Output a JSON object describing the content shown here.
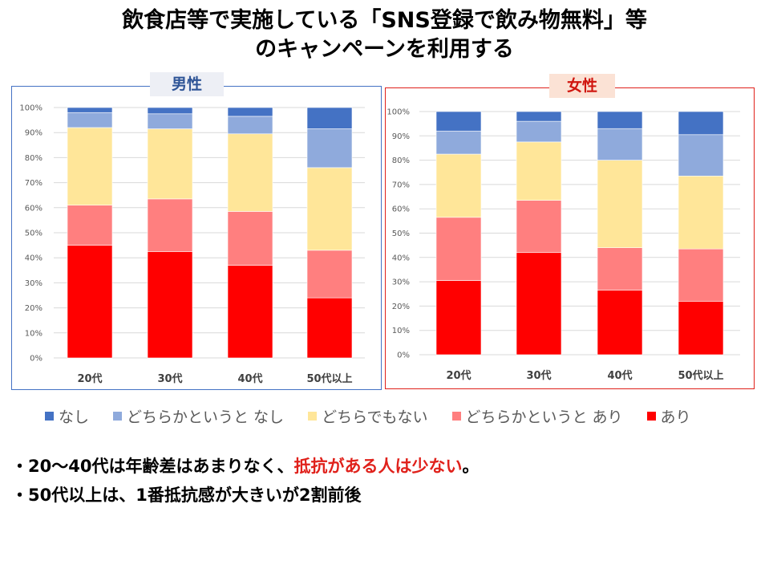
{
  "title": {
    "line1": "飲食店等で実施している「SNS登録で飲み物無料」等",
    "line2": "のキャンペーンを利用する"
  },
  "panels": {
    "male_label": "男性",
    "female_label": "女性"
  },
  "legend": [
    {
      "label": "なし",
      "color": "#4472C4"
    },
    {
      "label": "どちらかというと なし",
      "color": "#8FAADC"
    },
    {
      "label": "どちらでもない",
      "color": "#FFE699"
    },
    {
      "label": "どちらかというと あり",
      "color": "#FF7F7F"
    },
    {
      "label": "あり",
      "color": "#FF0000"
    }
  ],
  "notes": {
    "line1_prefix": "・20～40代は年齢差はあまりなく、",
    "line1_highlight": "抵抗がある人は少ない",
    "line1_suffix": "。",
    "line2": "・50代以上は、1番抵抗感が大きいが2割前後"
  },
  "chart_data": [
    {
      "type": "bar",
      "stacked": true,
      "title": "男性",
      "categories": [
        "20代",
        "30代",
        "40代",
        "50代以上"
      ],
      "ylim": [
        0,
        100
      ],
      "yticks": [
        "0%",
        "10%",
        "20%",
        "30%",
        "40%",
        "50%",
        "60%",
        "70%",
        "80%",
        "90%",
        "100%"
      ],
      "grid": true,
      "series": [
        {
          "name": "あり",
          "color": "#FF0000",
          "values": [
            45,
            42.5,
            37,
            24
          ]
        },
        {
          "name": "どちらかというと あり",
          "color": "#FF7F7F",
          "values": [
            16,
            21,
            21.5,
            19
          ]
        },
        {
          "name": "どちらでもない",
          "color": "#FFE699",
          "values": [
            31,
            28,
            31,
            33
          ]
        },
        {
          "name": "どちらかというと なし",
          "color": "#8FAADC",
          "values": [
            6,
            6,
            7,
            15.5
          ]
        },
        {
          "name": "なし",
          "color": "#4472C4",
          "values": [
            2,
            2.5,
            3.5,
            8.5
          ]
        }
      ]
    },
    {
      "type": "bar",
      "stacked": true,
      "title": "女性",
      "categories": [
        "20代",
        "30代",
        "40代",
        "50代以上"
      ],
      "ylim": [
        0,
        100
      ],
      "yticks": [
        "0%",
        "10%",
        "20%",
        "30%",
        "40%",
        "50%",
        "60%",
        "70%",
        "80%",
        "90%",
        "100%"
      ],
      "grid": true,
      "series": [
        {
          "name": "あり",
          "color": "#FF0000",
          "values": [
            30.5,
            42,
            26.5,
            22
          ]
        },
        {
          "name": "どちらかというと あり",
          "color": "#FF7F7F",
          "values": [
            26,
            21.5,
            17.5,
            21.5
          ]
        },
        {
          "name": "どちらでもない",
          "color": "#FFE699",
          "values": [
            26,
            24,
            36,
            30
          ]
        },
        {
          "name": "どちらかというと なし",
          "color": "#8FAADC",
          "values": [
            9.5,
            8.5,
            13,
            17
          ]
        },
        {
          "name": "なし",
          "color": "#4472C4",
          "values": [
            8,
            4,
            7,
            9.5
          ]
        }
      ]
    }
  ]
}
